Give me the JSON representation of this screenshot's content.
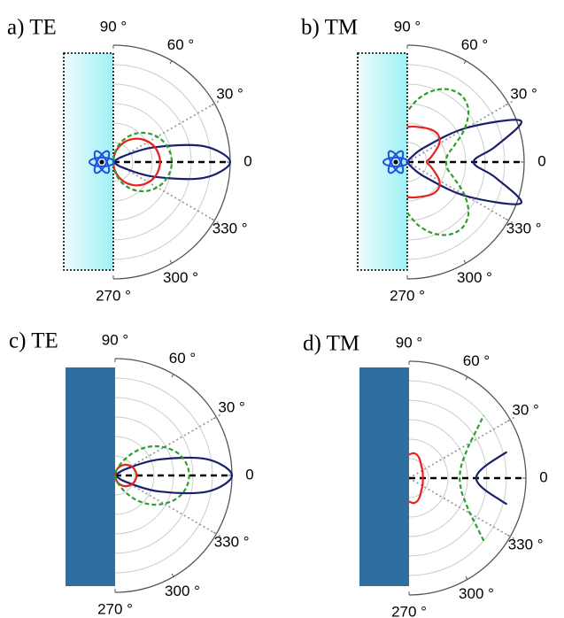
{
  "chart_data": [
    {
      "type": "polar",
      "title": "a) TE",
      "rlim": [
        0,
        6
      ],
      "rticks": [
        1,
        2,
        3,
        4,
        5,
        6
      ],
      "thetaticks": [
        {
          "value": 90,
          "label": "90 °"
        },
        {
          "value": 60,
          "label": "60 °"
        },
        {
          "value": 30,
          "label": "30 °"
        },
        0,
        {
          "value": 330,
          "label": "330 °"
        },
        {
          "value": 300,
          "label": "300 °"
        },
        {
          "value": 270,
          "label": "270 °"
        }
      ],
      "series": [
        {
          "color": "#1a1f6e",
          "dashed": false,
          "theta": [
            -90,
            -80,
            -70,
            -60,
            -50,
            -40,
            -30,
            -20,
            -10,
            0,
            10,
            20,
            30,
            40,
            50,
            60,
            70,
            80,
            90
          ],
          "values": [
            0,
            0,
            0,
            0,
            0,
            0.08,
            0.6,
            2.2,
            4.7,
            6,
            4.7,
            2.2,
            0.6,
            0.08,
            0,
            0,
            0,
            0,
            0
          ]
        },
        {
          "color": "#e8201e",
          "dashed": false,
          "theta": [
            -90,
            -80,
            -70,
            -60,
            -50,
            -40,
            -30,
            -20,
            -10,
            0,
            10,
            20,
            30,
            40,
            50,
            60,
            70,
            80,
            90
          ],
          "values": [
            0,
            0.42,
            0.82,
            1.2,
            1.54,
            1.84,
            2.08,
            2.26,
            2.36,
            2.4,
            2.36,
            2.26,
            2.08,
            1.84,
            1.54,
            1.2,
            0.82,
            0.42,
            0
          ]
        },
        {
          "color": "#2aa02a",
          "dashed": true,
          "theta": [
            -90,
            -80,
            -70,
            -60,
            -50,
            -40,
            -30,
            -20,
            -10,
            0,
            10,
            20,
            30,
            40,
            50,
            60,
            70,
            80,
            90
          ],
          "values": [
            0,
            0.52,
            1.03,
            1.5,
            1.93,
            2.3,
            2.6,
            2.82,
            2.95,
            3,
            2.95,
            2.82,
            2.6,
            2.3,
            1.93,
            1.5,
            1.03,
            0.52,
            0
          ]
        }
      ]
    },
    {
      "type": "polar",
      "title": "b) TM",
      "rlim": [
        0,
        6
      ],
      "rticks": [
        1,
        2,
        3,
        4,
        5,
        6
      ],
      "thetaticks": [
        {
          "value": 90,
          "label": "90 °"
        },
        {
          "value": 60,
          "label": "60 °"
        },
        {
          "value": 30,
          "label": "30 °"
        },
        0,
        {
          "value": 330,
          "label": "330 °"
        },
        {
          "value": 300,
          "label": "300 °"
        },
        {
          "value": 270,
          "label": "270 °"
        }
      ],
      "series": [
        {
          "color": "#1a1f6e",
          "dashed": false,
          "theta": [
            -90,
            -80,
            -70,
            -60,
            -50,
            -40,
            -30,
            -20,
            -10,
            0,
            10,
            20,
            30,
            40,
            50,
            60,
            70,
            80,
            90
          ],
          "values": [
            0,
            0,
            0,
            0,
            0.3,
            1.2,
            3.5,
            6.2,
            4.6,
            3.4,
            4.6,
            6.2,
            3.5,
            1.2,
            0.3,
            0,
            0,
            0,
            0
          ]
        },
        {
          "color": "#e8201e",
          "dashed": false,
          "theta": [
            -90,
            -80,
            -70,
            -60,
            -50,
            -40,
            -30,
            -20,
            -10,
            0,
            10,
            20,
            30,
            40,
            50,
            60,
            70,
            80,
            90
          ],
          "values": [
            1.8,
            1.85,
            1.9,
            2,
            2.1,
            2.1,
            1.9,
            1.5,
            1.2,
            1,
            1.2,
            1.5,
            1.9,
            2.1,
            2.1,
            2,
            1.9,
            1.85,
            1.8
          ]
        },
        {
          "color": "#2aa02a",
          "dashed": true,
          "theta": [
            -90,
            -80,
            -70,
            -60,
            -50,
            -40,
            -30,
            -20,
            -10,
            0,
            10,
            20,
            30,
            40,
            50,
            60,
            70,
            80,
            90
          ],
          "values": [
            2.6,
            3.3,
            3.9,
            4.3,
            4.4,
            4.1,
            3.4,
            2.6,
            2.1,
            2,
            2.1,
            2.6,
            3.4,
            4.1,
            4.4,
            4.3,
            3.9,
            3.3,
            2.6
          ]
        }
      ]
    },
    {
      "type": "polar",
      "title": "c) TE",
      "rlim": [
        0,
        6
      ],
      "rticks": [
        1,
        2,
        3,
        4,
        5,
        6
      ],
      "thetaticks": [
        {
          "value": 90,
          "label": "90 °"
        },
        {
          "value": 60,
          "label": "60 °"
        },
        {
          "value": 30,
          "label": "30 °"
        },
        0,
        {
          "value": 330,
          "label": "330 °"
        },
        {
          "value": 300,
          "label": "300 °"
        },
        {
          "value": 270,
          "label": "270 °"
        }
      ],
      "series": [
        {
          "color": "#1a1f6e",
          "dashed": false,
          "theta": [
            -90,
            -80,
            -70,
            -60,
            -50,
            -40,
            -30,
            -20,
            -10,
            0,
            10,
            20,
            30,
            40,
            50,
            60,
            70,
            80,
            90
          ],
          "values": [
            0,
            0,
            0,
            0,
            0,
            0.1,
            0.7,
            2.4,
            4.8,
            6,
            4.8,
            2.4,
            0.7,
            0.1,
            0,
            0,
            0,
            0,
            0
          ]
        },
        {
          "color": "#e8201e",
          "dashed": false,
          "theta": [
            -90,
            -80,
            -70,
            -60,
            -50,
            -40,
            -30,
            -20,
            -10,
            0,
            10,
            20,
            30,
            40,
            50,
            60,
            70,
            80,
            90
          ],
          "values": [
            0,
            0.19,
            0.38,
            0.55,
            0.71,
            0.84,
            0.95,
            1.03,
            1.08,
            1.1,
            1.08,
            1.03,
            0.95,
            0.84,
            0.71,
            0.55,
            0.38,
            0.19,
            0
          ]
        },
        {
          "color": "#2aa02a",
          "dashed": true,
          "theta": [
            -90,
            -80,
            -70,
            -60,
            -50,
            -40,
            -30,
            -20,
            -10,
            0,
            10,
            20,
            30,
            40,
            50,
            60,
            70,
            80,
            90
          ],
          "values": [
            0,
            0.1,
            0.4,
            0.9,
            1.6,
            2.3,
            2.9,
            3.4,
            3.7,
            3.8,
            3.7,
            3.4,
            2.9,
            2.3,
            1.6,
            0.9,
            0.4,
            0.1,
            0
          ]
        }
      ]
    },
    {
      "type": "polar",
      "title": "d) TM",
      "rlim": [
        0,
        6
      ],
      "rticks": [
        1,
        2,
        3,
        4,
        5,
        6
      ],
      "thetaticks": [
        {
          "value": 90,
          "label": "90 °"
        },
        {
          "value": 60,
          "label": "60 °"
        },
        {
          "value": 30,
          "label": "30 °"
        },
        0,
        {
          "value": 330,
          "label": "330 °"
        },
        {
          "value": 300,
          "label": "300 °"
        },
        {
          "value": 270,
          "label": "270 °"
        }
      ],
      "series": [
        {
          "color": "#1a1f6e",
          "dashed": false,
          "theta": [
            -15,
            -10,
            -5,
            0,
            5,
            10,
            15
          ],
          "values": [
            5.2,
            4.1,
            3.6,
            3.45,
            3.6,
            4.1,
            5.2
          ]
        },
        {
          "color": "#e8201e",
          "dashed": false,
          "theta": [
            -90,
            -80,
            -70,
            -60,
            -50,
            -40,
            -30,
            -20,
            -10,
            0,
            10,
            20,
            30,
            40,
            50,
            60,
            70,
            80,
            90
          ],
          "values": [
            1.2,
            1.3,
            1.25,
            1.1,
            0.95,
            0.85,
            0.8,
            0.75,
            0.72,
            0.7,
            0.72,
            0.75,
            0.8,
            0.85,
            0.95,
            1.1,
            1.25,
            1.3,
            1.2
          ]
        },
        {
          "color": "#2aa02a",
          "dashed": true,
          "theta": [
            -40,
            -35,
            -30,
            -25,
            -20,
            -15,
            -10,
            -5,
            0,
            5,
            10,
            15,
            20,
            25,
            30,
            35,
            40
          ],
          "values": [
            5,
            4.19,
            3.61,
            3.25,
            2.99,
            2.8,
            2.69,
            2.62,
            2.6,
            2.62,
            2.69,
            2.8,
            2.99,
            3.25,
            3.61,
            4.19,
            5
          ]
        }
      ]
    }
  ]
}
